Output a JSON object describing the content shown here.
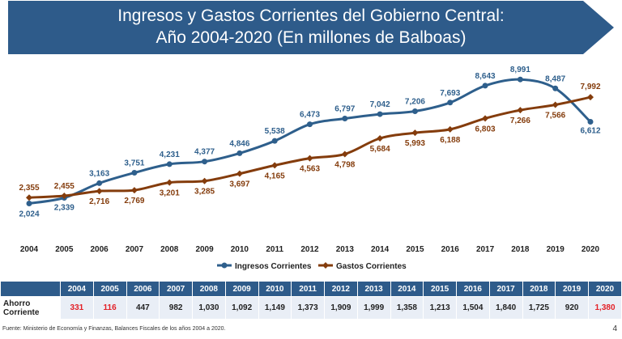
{
  "title": {
    "line1": "Ingresos y Gastos Corrientes del Gobierno Central:",
    "line2": "Año 2004-2020 (En millones de Balboas)"
  },
  "colors": {
    "banner": "#2e5b8a",
    "ingresos": "#2e5f8c",
    "gastos": "#843c0c",
    "negative": "#e31f26"
  },
  "chart_data": {
    "type": "line",
    "title": "Ingresos y Gastos Corrientes del Gobierno Central: Año 2004-2020 (En millones de Balboas)",
    "xlabel": "",
    "ylabel": "",
    "categories": [
      "2004",
      "2005",
      "2006",
      "2007",
      "2008",
      "2009",
      "2010",
      "2011",
      "2012",
      "2013",
      "2014",
      "2015",
      "2016",
      "2017",
      "2018",
      "2019",
      "2020"
    ],
    "series": [
      {
        "name": "Ingresos Corrientes",
        "color": "#2e5f8c",
        "values": [
          2024,
          2339,
          3163,
          3751,
          4231,
          4377,
          4846,
          5538,
          6473,
          6797,
          7042,
          7206,
          7693,
          8643,
          8991,
          8487,
          6612
        ],
        "labels": [
          "2,024",
          "2,339",
          "3,163",
          "3,751",
          "4,231",
          "4,377",
          "4,846",
          "5,538",
          "6,473",
          "6,797",
          "7,042",
          "7,206",
          "7,693",
          "8,643",
          "8,991",
          "8,487",
          "6,612"
        ]
      },
      {
        "name": "Gastos Corrientes",
        "color": "#843c0c",
        "values": [
          2355,
          2455,
          2716,
          2769,
          3201,
          3285,
          3697,
          4165,
          4563,
          4798,
          5684,
          5993,
          6188,
          6803,
          7266,
          7566,
          7992
        ],
        "labels": [
          "2,355",
          "2,455",
          "2,716",
          "2,769",
          "3,201",
          "3,285",
          "3,697",
          "4,165",
          "4,563",
          "4,798",
          "5,684",
          "5,993",
          "6,188",
          "6,803",
          "7,266",
          "7,566",
          "7,992"
        ]
      }
    ],
    "grid": false,
    "legend_position": "bottom"
  },
  "table": {
    "row_label": "Ahorro Corriente",
    "years": [
      "2004",
      "2005",
      "2006",
      "2007",
      "2008",
      "2009",
      "2010",
      "2011",
      "2012",
      "2013",
      "2014",
      "2015",
      "2016",
      "2017",
      "2018",
      "2019",
      "2020"
    ],
    "values": [
      "331",
      "116",
      "447",
      "982",
      "1,030",
      "1,092",
      "1,149",
      "1,373",
      "1,909",
      "1,999",
      "1,358",
      "1,213",
      "1,504",
      "1,840",
      "1,725",
      "920",
      "1,380"
    ],
    "highlighted": [
      true,
      true,
      false,
      false,
      false,
      false,
      false,
      false,
      false,
      false,
      false,
      false,
      false,
      false,
      false,
      false,
      true
    ]
  },
  "source": "Fuente: Ministerio de Economía y Finanzas, Balances Fiscales de los años 2004 a 2020.",
  "page_number": "4"
}
